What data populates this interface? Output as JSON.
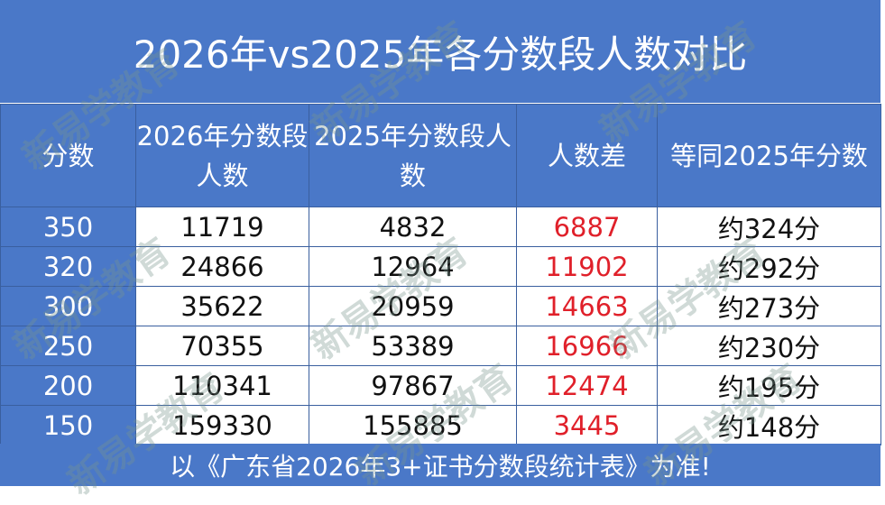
{
  "title": "2026年vs2025年各分数段人数对比",
  "table": {
    "headers": [
      "分数",
      "2026年分数段人数",
      "2025年分数段人数",
      "人数差",
      "等同2025年分数"
    ],
    "rows": [
      [
        350,
        11719,
        4832,
        6887,
        "约324分"
      ],
      [
        320,
        24866,
        12964,
        11902,
        "约292分"
      ],
      [
        300,
        35622,
        20959,
        14663,
        "约273分"
      ],
      [
        250,
        70355,
        53389,
        16966,
        "约230分"
      ],
      [
        200,
        110341,
        97867,
        12474,
        "约195分"
      ],
      [
        150,
        159330,
        155885,
        3445,
        "约148分"
      ]
    ]
  },
  "footer": "以《广东省2026年3+证书分数段统计表》为准!",
  "watermark": "新易学教育"
}
